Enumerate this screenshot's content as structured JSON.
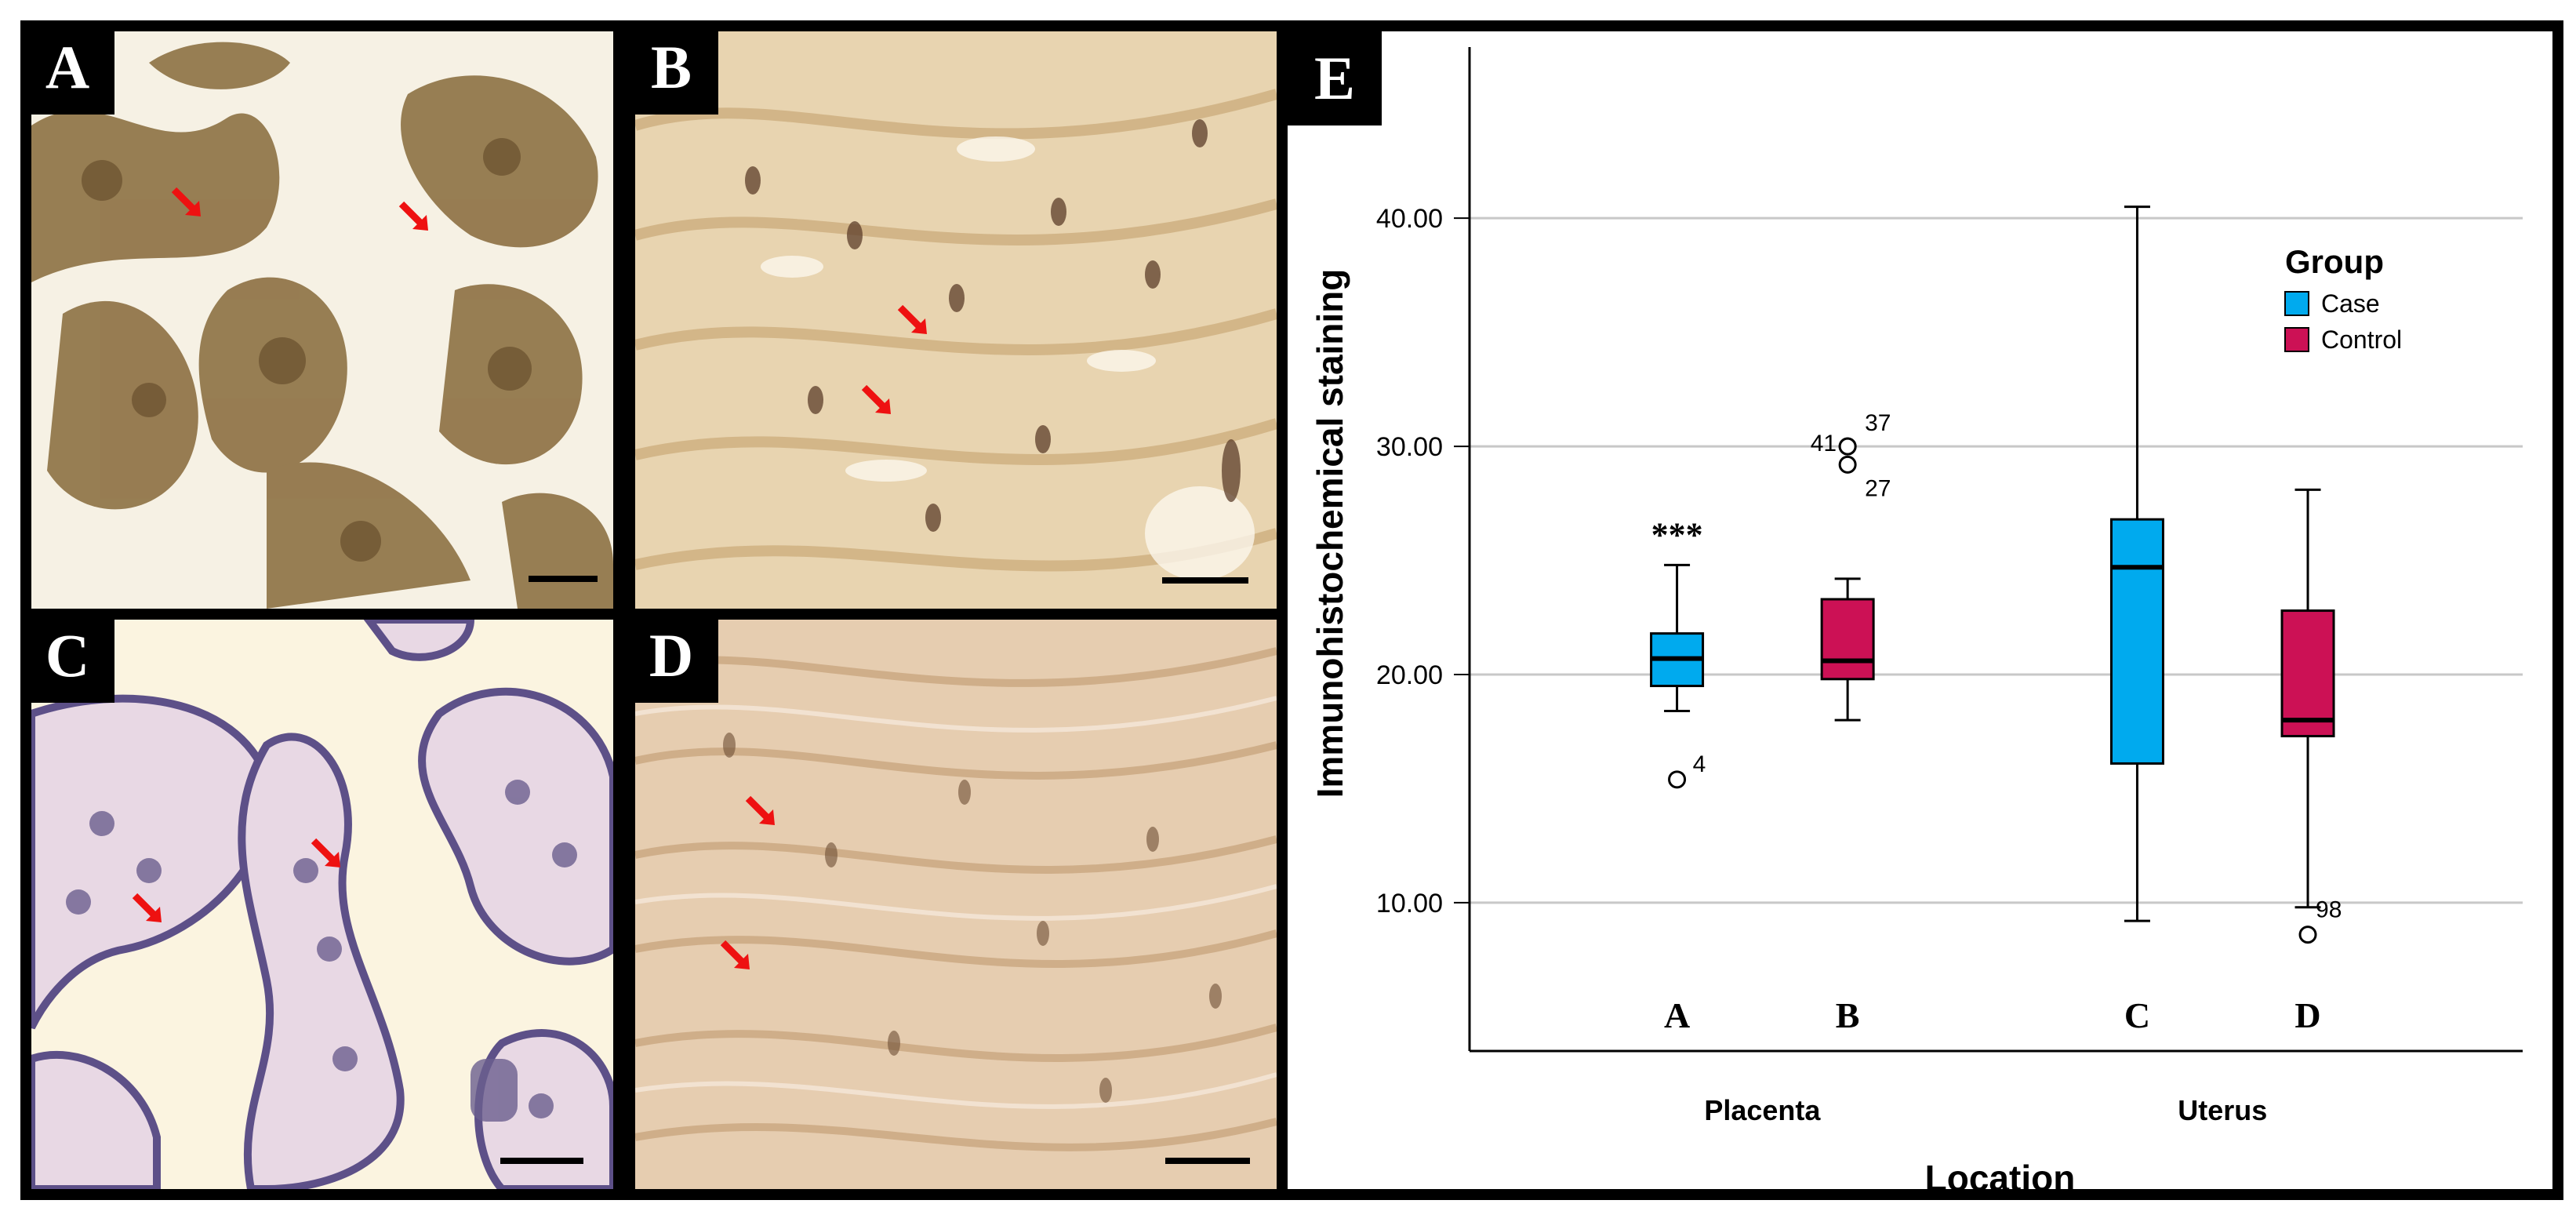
{
  "panels": [
    {
      "id": "A",
      "label": "A"
    },
    {
      "id": "B",
      "label": "B"
    },
    {
      "id": "C",
      "label": "C"
    },
    {
      "id": "D",
      "label": "D"
    }
  ],
  "chart_panel_label": "E",
  "colors": {
    "case": "#00aaee",
    "control": "#cc1155",
    "arrow": "#ee1111",
    "grid": "#c8c8c8",
    "tile_brown": "#b99a6c",
    "tile_cream": "#fbf5e3",
    "tile_purple": "#6f5f96"
  },
  "chart_data": {
    "type": "box",
    "title": "",
    "xlabel": "Location",
    "ylabel": "Immunohistochemical staining",
    "ylim": [
      3.5,
      47.5
    ],
    "yticks": [
      10,
      20,
      30,
      40
    ],
    "ytick_labels": [
      "10.00",
      "20.00",
      "30.00",
      "40.00"
    ],
    "grid": true,
    "categories": [
      "Placenta",
      "Uterus"
    ],
    "legend": {
      "title": "Group",
      "position": "top-right",
      "entries": [
        "Case",
        "Control"
      ]
    },
    "series": [
      {
        "name": "Case",
        "boxes": [
          {
            "category": "Placenta",
            "letter": "A",
            "whisker_low": 18.4,
            "q1": 19.5,
            "median": 20.7,
            "q3": 21.8,
            "whisker_high": 24.8,
            "annotation": "***",
            "outliers": [
              {
                "value": 15.4,
                "label": "4"
              }
            ]
          },
          {
            "category": "Uterus",
            "letter": "C",
            "whisker_low": 9.2,
            "q1": 16.1,
            "median": 24.7,
            "q3": 26.8,
            "whisker_high": 40.5,
            "annotation": "",
            "outliers": []
          }
        ]
      },
      {
        "name": "Control",
        "boxes": [
          {
            "category": "Placenta",
            "letter": "B",
            "whisker_low": 18.0,
            "q1": 19.8,
            "median": 20.6,
            "q3": 23.3,
            "whisker_high": 24.2,
            "annotation": "",
            "outliers": [
              {
                "value": 30.0,
                "label": "37"
              },
              {
                "value": 29.2,
                "label": "27"
              },
              {
                "value": 30.0,
                "label": "41"
              }
            ]
          },
          {
            "category": "Uterus",
            "letter": "D",
            "whisker_low": 9.8,
            "q1": 17.3,
            "median": 18.0,
            "q3": 22.8,
            "whisker_high": 28.1,
            "annotation": "",
            "outliers": [
              {
                "value": 8.6,
                "label": "98"
              }
            ]
          }
        ]
      }
    ]
  }
}
